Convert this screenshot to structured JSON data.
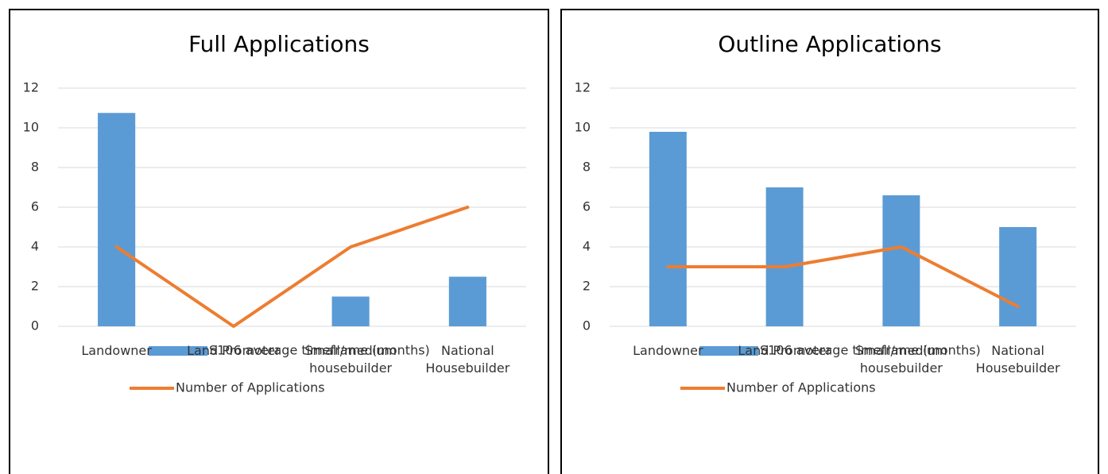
{
  "chart_data": [
    {
      "type": "combo",
      "title": "Full Applications",
      "categories": [
        "Landowner",
        "Land Promoter",
        "Small/medium housebuilder",
        "National Housebuilder"
      ],
      "series": [
        {
          "name": "S106 average timeframe (months)",
          "kind": "bar",
          "color": "#5b9bd5",
          "values": [
            10.75,
            0,
            1.5,
            2.5
          ]
        },
        {
          "name": "Number of Applications",
          "kind": "line",
          "color": "#ed7d31",
          "values": [
            4,
            0,
            4,
            6
          ]
        }
      ],
      "ylim": [
        0,
        12
      ],
      "yticks": [
        0,
        2,
        4,
        6,
        8,
        10,
        12
      ],
      "grid": true,
      "legend": "bottom"
    },
    {
      "type": "combo",
      "title": "Outline Applications",
      "categories": [
        "Landowner",
        "Land Promoter",
        "Small/medium housebuilder",
        "National Housebuilder"
      ],
      "series": [
        {
          "name": "S106 average timeframe (months)",
          "kind": "bar",
          "color": "#5b9bd5",
          "values": [
            9.8,
            7,
            6.6,
            5
          ]
        },
        {
          "name": "Number of Applications",
          "kind": "line",
          "color": "#ed7d31",
          "values": [
            3,
            3,
            4,
            1
          ]
        }
      ],
      "ylim": [
        0,
        12
      ],
      "yticks": [
        0,
        2,
        4,
        6,
        8,
        10,
        12
      ],
      "grid": true,
      "legend": "bottom"
    }
  ]
}
